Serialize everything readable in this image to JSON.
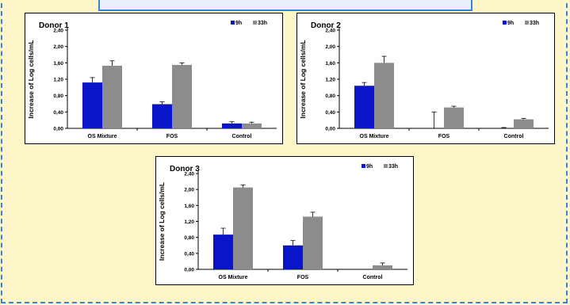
{
  "colors": {
    "background": "#fdf6c8",
    "frame_border": "#3a82d8",
    "banner_fill": "#e7f0fa",
    "series_9h": "#0a14c8",
    "series_33h": "#8c8c8c"
  },
  "chart_data": [
    {
      "type": "bar",
      "title": "Donor 1",
      "ylabel": "Increase of Log cells/mL",
      "xlabel": "",
      "categories": [
        "OS Mixture",
        "FOS",
        "Control"
      ],
      "ylim": [
        0,
        2.4
      ],
      "yticks": [
        "0,00",
        "0,40",
        "0,80",
        "1,20",
        "1,60",
        "2,00",
        "2,40"
      ],
      "grid": false,
      "legend": "top-right",
      "series": [
        {
          "name": "9h",
          "values": [
            1.12,
            0.59,
            0.12
          ],
          "errors": [
            0.12,
            0.06,
            0.04
          ]
        },
        {
          "name": "33h",
          "values": [
            1.53,
            1.55,
            0.12
          ],
          "errors": [
            0.12,
            0.05,
            0.03
          ]
        }
      ]
    },
    {
      "type": "bar",
      "title": "Donor 2",
      "ylabel": "Increase of Log cells/mL",
      "xlabel": "",
      "categories": [
        "OS Mixture",
        "FOS",
        "Control"
      ],
      "ylim": [
        0,
        2.4
      ],
      "yticks": [
        "0,00",
        "0,40",
        "0,80",
        "1,20",
        "1,60",
        "2,00",
        "2,40"
      ],
      "grid": false,
      "legend": "top-right",
      "series": [
        {
          "name": "9h",
          "values": [
            1.04,
            0.0,
            0.0
          ],
          "errors": [
            0.08,
            0.4,
            0.02
          ]
        },
        {
          "name": "33h",
          "values": [
            1.6,
            0.51,
            0.22
          ],
          "errors": [
            0.16,
            0.03,
            0.02
          ]
        }
      ]
    },
    {
      "type": "bar",
      "title": "Donor 3",
      "ylabel": "Increase of Log cells/mL",
      "xlabel": "",
      "categories": [
        "OS Mixture",
        "FOS",
        "Control"
      ],
      "ylim": [
        0,
        2.4
      ],
      "yticks": [
        "0,00",
        "0,40",
        "0,80",
        "1,20",
        "1,60",
        "2,00",
        "2,40"
      ],
      "grid": false,
      "legend": "top-right",
      "series": [
        {
          "name": "9h",
          "values": [
            0.87,
            0.6,
            0.0
          ],
          "errors": [
            0.16,
            0.12,
            0.0
          ]
        },
        {
          "name": "33h",
          "values": [
            2.05,
            1.32,
            0.1
          ],
          "errors": [
            0.06,
            0.11,
            0.06
          ]
        }
      ]
    }
  ]
}
